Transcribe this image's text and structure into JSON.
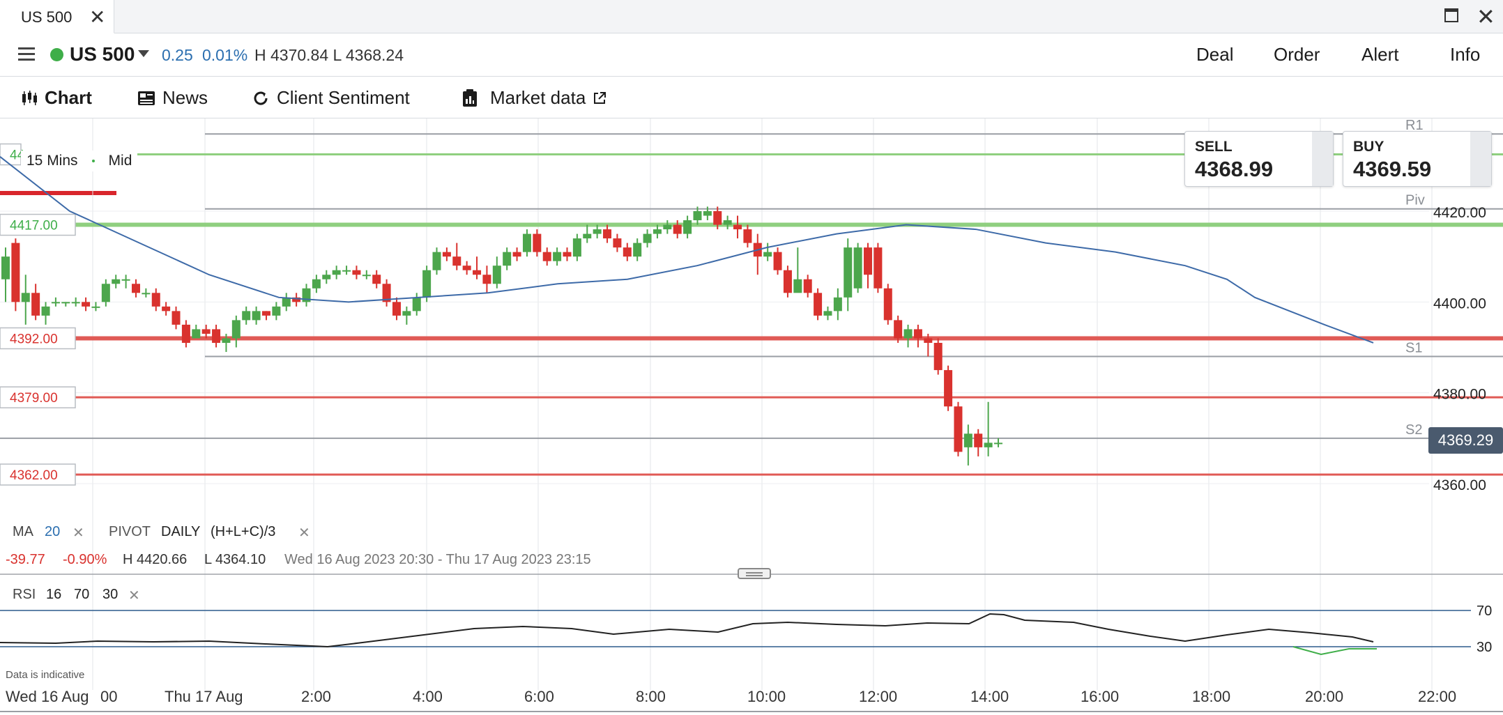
{
  "window": {
    "tab_title": "US 500",
    "close_label": "✕"
  },
  "header": {
    "symbol": "US 500",
    "change": "0.25",
    "change_pct": "0.01%",
    "high_low": "H 4370.84  L 4368.24",
    "buttons": [
      "Deal",
      "Order",
      "Alert",
      "Info"
    ]
  },
  "subtabs": {
    "chart": "Chart",
    "news": "News",
    "sentiment": "Client Sentiment",
    "market_data": "Market data"
  },
  "trade": {
    "sell_label": "SELL",
    "sell_price": "4368.99",
    "buy_label": "BUY",
    "buy_price": "4369.59"
  },
  "chart_controls": {
    "interval": "15 Mins",
    "price_type": "Mid"
  },
  "price_axis": [
    "4420.00",
    "4400.00",
    "4380.00",
    "4360.00"
  ],
  "current_price": "4369.29",
  "levels": {
    "green_left": "4417.00",
    "green_top_partial": "44",
    "red1": "4392.00",
    "red2": "4379.00",
    "red3": "4362.00"
  },
  "pivots": [
    "R1",
    "Piv",
    "S1",
    "S2"
  ],
  "indicators": {
    "ma_label": "MA",
    "ma_period": "20",
    "pivot_label": "PIVOT",
    "pivot_period": "DAILY",
    "pivot_formula": "(H+L+C)/3",
    "remove": "✕"
  },
  "summary": {
    "change": "-39.77",
    "change_pct": "-0.90%",
    "high": "H 4420.66",
    "low": "L 4364.10",
    "range": "Wed 16 Aug 2023 20:30 - Thu 17 Aug 2023 23:15"
  },
  "rsi": {
    "label": "RSI",
    "period": "16",
    "upper": "70",
    "lower": "30",
    "upper_axis": "70",
    "lower_axis": "30"
  },
  "note": "Data is indicative",
  "time_axis": [
    "Wed 16 Aug",
    "00",
    "Thu 17 Aug",
    "2:00",
    "4:00",
    "6:00",
    "8:00",
    "10:00",
    "12:00",
    "14:00",
    "16:00",
    "18:00",
    "20:00",
    "22:00"
  ],
  "colors": {
    "up": "#4ca64c",
    "down": "#d9322e",
    "ma": "#3d6aa8",
    "accent": "#d9262c",
    "level_green": "#8fcf7f",
    "level_red": "#e05a55"
  }
}
